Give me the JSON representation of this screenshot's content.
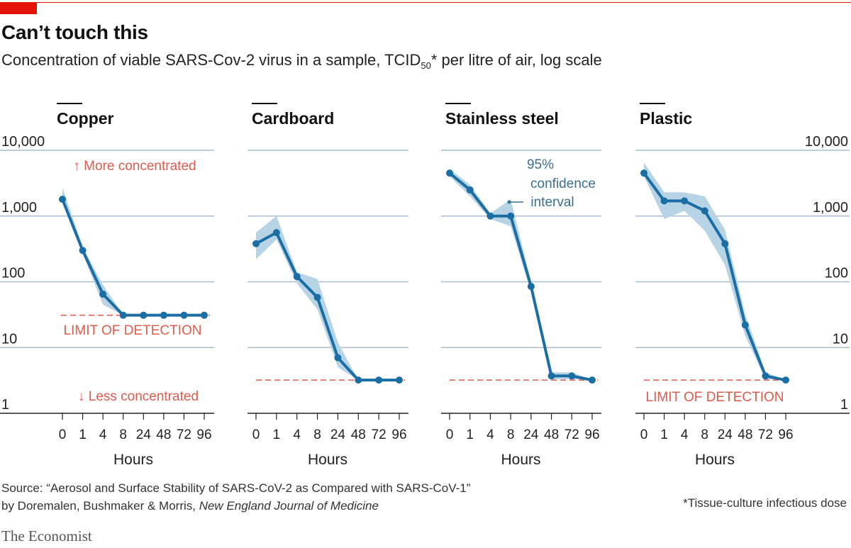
{
  "header": {
    "title": "Can’t touch this",
    "subtitle_pre": "Concentration of viable SARS-Cov-2 virus in a sample, TCID",
    "subtitle_sub": "50",
    "subtitle_post": "* per litre of air, log scale"
  },
  "footer": {
    "source_line1": "Source: “Aerosol and Surface Stability of SARS-CoV-2 as Compared with SARS-CoV-1”",
    "source_line2_pre": "by Doremalen, Bushmaker & Morris, ",
    "source_line2_journal": "New England Journal of Medicine",
    "footnote": "*Tissue-culture infectious dose",
    "brand": "The Economist"
  },
  "colors": {
    "line": "#1a6ea3",
    "band": "#b7d3e6",
    "grid": "#a9bdcc",
    "limit": "#e05a4e",
    "brand_red": "#e3120b"
  },
  "chart_data": {
    "type": "line",
    "scale": "log",
    "ylim": [
      1,
      10000
    ],
    "y_ticks": [
      "1",
      "10",
      "100",
      "1,000",
      "10,000"
    ],
    "x_categories": [
      "0",
      "1",
      "4",
      "8",
      "24",
      "48",
      "72",
      "96"
    ],
    "xlabel": "Hours",
    "annotations": {
      "more": "↑ More concentrated",
      "less": "↓ Less concentrated",
      "limit": "LIMIT OF DETECTION",
      "ci": [
        "95%",
        "confidence",
        "interval"
      ]
    },
    "panels": [
      {
        "name": "Copper",
        "limit": 31,
        "values": [
          1800,
          300,
          65,
          31,
          31,
          31,
          31,
          31
        ],
        "ci_low": [
          1700,
          270,
          45,
          31,
          31,
          31,
          31,
          31
        ],
        "ci_high": [
          2700,
          340,
          90,
          31,
          31,
          31,
          31,
          31
        ]
      },
      {
        "name": "Cardboard",
        "limit": 3.2,
        "values": [
          380,
          560,
          120,
          58,
          7,
          3.2,
          3.2,
          3.2
        ],
        "ci_low": [
          220,
          440,
          95,
          38,
          5,
          3.2,
          3.2,
          3.2
        ],
        "ci_high": [
          560,
          1000,
          140,
          110,
          12,
          3.2,
          3.2,
          3.2
        ]
      },
      {
        "name": "Stainless steel",
        "limit": 3.2,
        "values": [
          4500,
          2500,
          1000,
          1000,
          85,
          3.7,
          3.7,
          3.2
        ],
        "ci_low": [
          4000,
          2000,
          900,
          700,
          70,
          3.3,
          3.3,
          3.2
        ],
        "ci_high": [
          5200,
          3000,
          1100,
          1800,
          100,
          4.2,
          4.2,
          3.2
        ]
      },
      {
        "name": "Plastic",
        "limit": 3.2,
        "values": [
          4500,
          1700,
          1700,
          1200,
          380,
          22,
          3.7,
          3.2
        ],
        "ci_low": [
          4000,
          900,
          1200,
          600,
          180,
          15,
          3.3,
          3.2
        ],
        "ci_high": [
          6500,
          2300,
          2300,
          2000,
          620,
          32,
          4.2,
          3.2
        ]
      }
    ]
  }
}
